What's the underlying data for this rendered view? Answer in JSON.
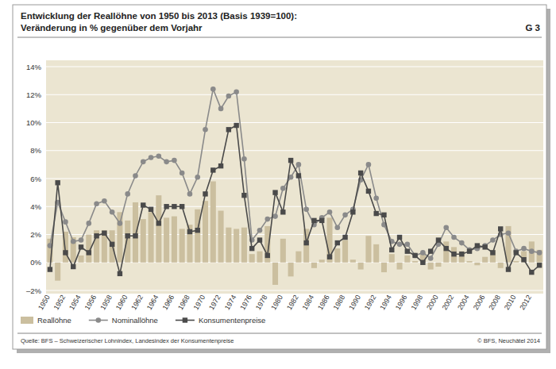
{
  "chart_data": {
    "type": "bar",
    "title": "Entwicklung der Reallöhne von 1950 bis 2013 (Basis 1939=100):",
    "subtitle": "Veränderung in % gegenüber dem Vorjahr",
    "annotations": [
      "G 3"
    ],
    "source": "Quelle: BFS – Schweizerischer Lohnindex, Landesindex der Konsumentenpreise",
    "copyright": "© BFS, Neuchâtel 2014",
    "categories": [
      "1950",
      null,
      "1952",
      null,
      "1954",
      null,
      "1956",
      null,
      "1958",
      null,
      "1960",
      null,
      "1962",
      null,
      "1964",
      null,
      "1966",
      null,
      "1968",
      null,
      "1970",
      null,
      "1972",
      null,
      "1974",
      null,
      "1976",
      null,
      "1978",
      null,
      "1980",
      null,
      "1982",
      null,
      "1984",
      null,
      "1986",
      null,
      "1988",
      null,
      "1990",
      null,
      "1992",
      null,
      "1994",
      null,
      "1996",
      null,
      "1998",
      null,
      "2000",
      null,
      "2002",
      null,
      "2004",
      null,
      "2006",
      null,
      "2008",
      null,
      "2010",
      null,
      "2012",
      null
    ],
    "series": [
      {
        "name": "Reallöhne",
        "type": "bar",
        "color": "#cbbf9f",
        "values": [
          1.7,
          -1.3,
          2.2,
          1.8,
          0.5,
          2.0,
          2.3,
          2.3,
          2.3,
          3.6,
          3.0,
          4.3,
          3.1,
          3.6,
          4.8,
          3.2,
          3.3,
          2.4,
          2.7,
          3.8,
          4.4,
          5.8,
          3.7,
          2.5,
          2.4,
          2.5,
          0.6,
          0.8,
          2.6,
          -1.6,
          1.7,
          -1.0,
          0.8,
          2.4,
          -0.4,
          0.2,
          3.2,
          1.0,
          1.6,
          0.2,
          -0.5,
          1.9,
          1.3,
          -0.7,
          0.6,
          -0.5,
          0.5,
          0.1,
          0.7,
          -0.5,
          -0.3,
          1.5,
          1.1,
          0.8,
          0.1,
          -0.2,
          0.4,
          0.9,
          -0.4,
          2.6,
          0.1,
          0.8,
          1.5,
          0.9
        ]
      },
      {
        "name": "Nominallöhne",
        "type": "line",
        "color": "#8a8a8a",
        "marker": "circle",
        "values": [
          1.2,
          4.3,
          2.9,
          1.5,
          1.6,
          2.8,
          4.2,
          4.4,
          3.6,
          2.8,
          4.9,
          6.2,
          7.2,
          7.5,
          7.6,
          7.2,
          7.3,
          6.4,
          4.9,
          6.1,
          9.5,
          12.4,
          11.0,
          11.9,
          12.2,
          7.4,
          1.6,
          2.3,
          3.1,
          3.3,
          5.3,
          6.1,
          7.0,
          3.8,
          2.7,
          3.2,
          3.6,
          2.5,
          3.4,
          3.8,
          5.9,
          7.0,
          4.6,
          2.7,
          1.5,
          1.3,
          1.3,
          0.5,
          0.7,
          0.3,
          1.3,
          2.5,
          1.8,
          1.4,
          0.9,
          1.0,
          1.2,
          1.6,
          2.0,
          2.1,
          0.8,
          1.0,
          0.8,
          0.7
        ]
      },
      {
        "name": "Konsumentenpreise",
        "type": "line",
        "color": "#4a4a4a",
        "marker": "square",
        "values": [
          -0.5,
          5.7,
          0.7,
          -0.3,
          1.1,
          0.7,
          1.9,
          2.1,
          1.3,
          -0.8,
          1.9,
          1.9,
          4.1,
          3.8,
          2.8,
          4.0,
          4.0,
          4.0,
          2.2,
          2.3,
          4.9,
          6.6,
          6.9,
          9.5,
          9.8,
          4.8,
          1.0,
          1.6,
          0.5,
          5.0,
          3.6,
          7.3,
          6.2,
          1.4,
          3.0,
          3.0,
          0.4,
          1.4,
          1.8,
          3.6,
          6.4,
          5.1,
          3.5,
          3.4,
          0.9,
          1.8,
          0.8,
          0.5,
          0.0,
          0.8,
          1.6,
          1.0,
          0.6,
          0.6,
          0.8,
          1.2,
          1.1,
          0.7,
          2.4,
          -0.5,
          0.7,
          0.2,
          -0.7,
          -0.2
        ]
      }
    ],
    "ylim": [
      -2,
      14
    ],
    "yticks": [
      {
        "value": -2,
        "label": "–2%"
      },
      {
        "value": 0,
        "label": "0%"
      },
      {
        "value": 2,
        "label": "2%"
      },
      {
        "value": 4,
        "label": "4%"
      },
      {
        "value": 6,
        "label": "6%"
      },
      {
        "value": 8,
        "label": "8%"
      },
      {
        "value": 10,
        "label": "10%"
      },
      {
        "value": 12,
        "label": "12%"
      },
      {
        "value": 14,
        "label": "14%"
      }
    ],
    "grid": true,
    "legend": "bottom"
  }
}
